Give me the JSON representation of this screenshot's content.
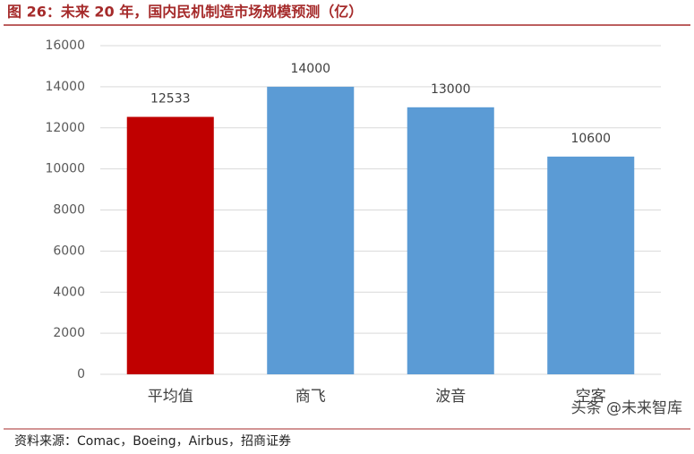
{
  "chart_data": {
    "type": "bar",
    "title": "图 26：未来 20 年，国内民机制造市场规模预测（亿）",
    "categories": [
      "平均值",
      "商飞",
      "波音",
      "空客"
    ],
    "values": [
      12533,
      14000,
      13000,
      10600
    ],
    "colors": [
      "#c00000",
      "#5b9bd5",
      "#5b9bd5",
      "#5b9bd5"
    ],
    "ylim": [
      0,
      16000
    ],
    "yticks": [
      0,
      2000,
      4000,
      6000,
      8000,
      10000,
      12000,
      14000,
      16000
    ],
    "grid": true,
    "source": "资料来源：Comac，Boeing，Airbus，招商证券",
    "watermark": "头条 @未来智库"
  }
}
